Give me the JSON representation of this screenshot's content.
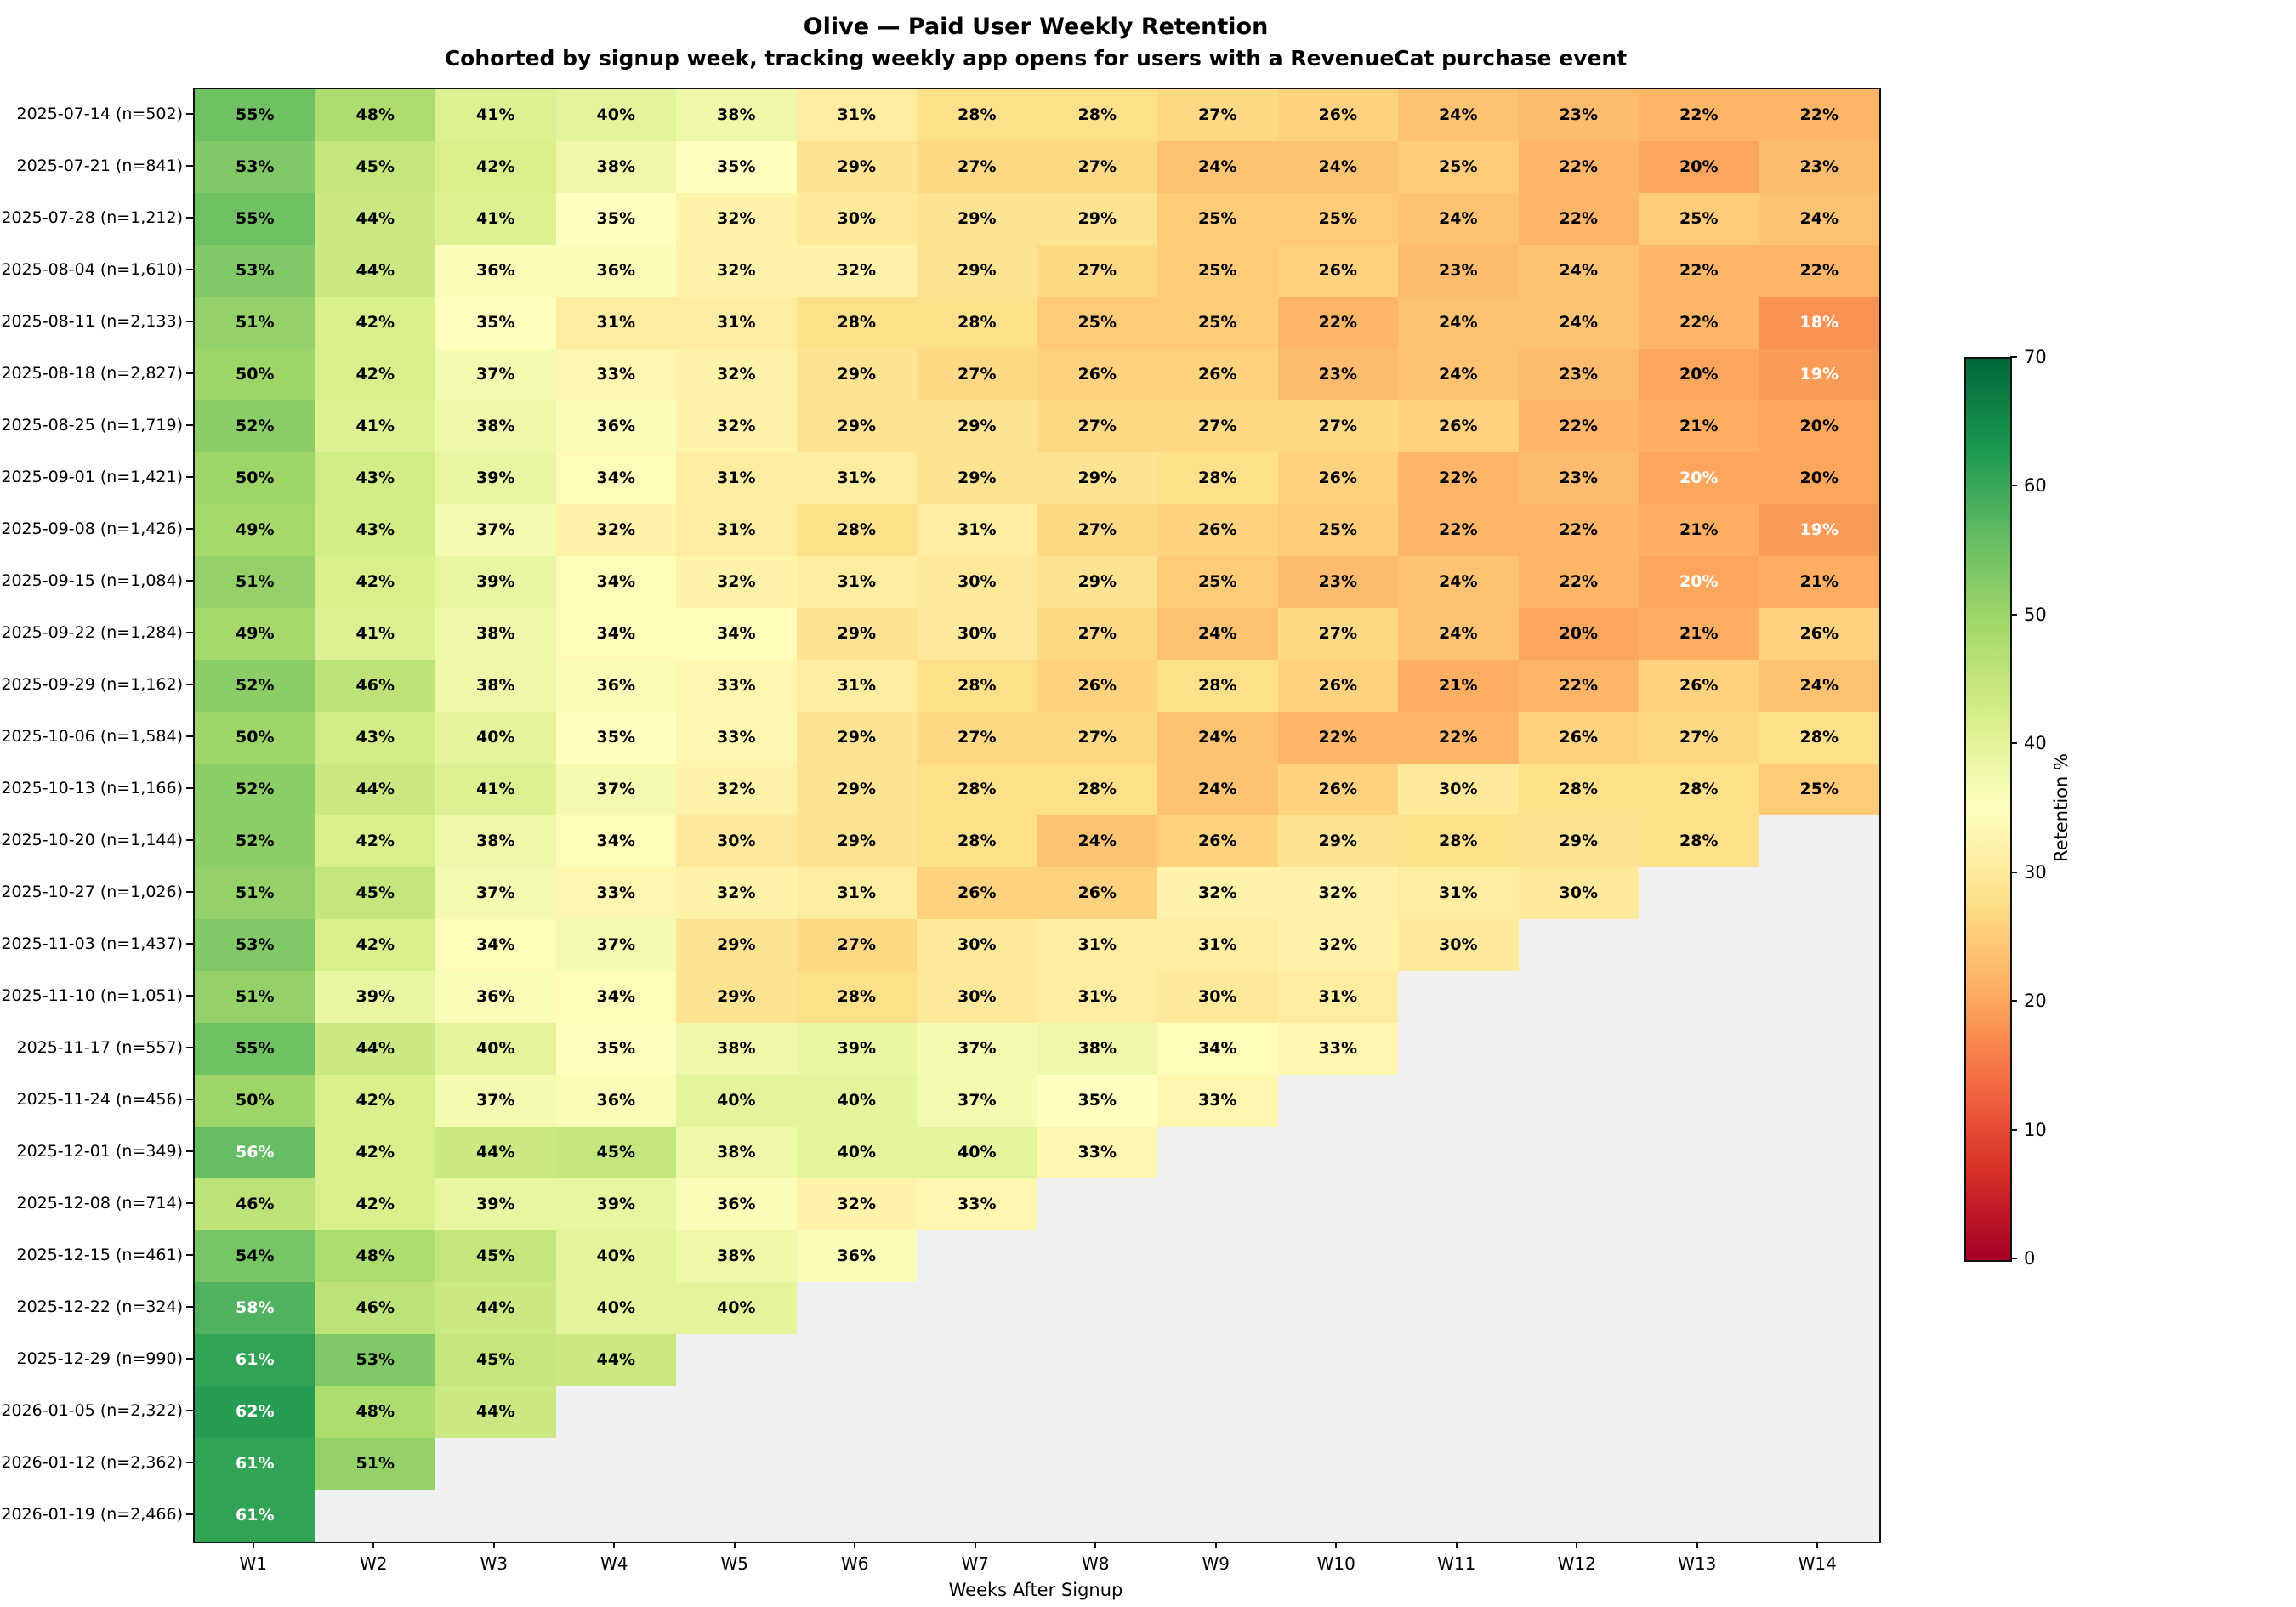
{
  "header": {
    "title": "Olive — Paid User Weekly Retention",
    "subtitle": "Cohorted by signup week, tracking weekly app opens for users with a RevenueCat purchase event"
  },
  "chart_data": {
    "type": "heatmap",
    "title": "Olive — Paid User Weekly Retention",
    "subtitle": "Cohorted by signup week, tracking weekly app opens for users with a RevenueCat purchase event",
    "xlabel": "Weeks After Signup",
    "x_ticks": [
      "W1",
      "W2",
      "W3",
      "W4",
      "W5",
      "W6",
      "W7",
      "W8",
      "W9",
      "W10",
      "W11",
      "W12",
      "W13",
      "W14"
    ],
    "value_suffix": "%",
    "cohorts": [
      {
        "label": "2025-07-14 (n=502)",
        "values": [
          55,
          48,
          41,
          40,
          38,
          31,
          28,
          28,
          27,
          26,
          24,
          23,
          22,
          22
        ]
      },
      {
        "label": "2025-07-21 (n=841)",
        "values": [
          53,
          45,
          42,
          38,
          35,
          29,
          27,
          27,
          24,
          24,
          25,
          22,
          20,
          23
        ]
      },
      {
        "label": "2025-07-28 (n=1,212)",
        "values": [
          55,
          44,
          41,
          35,
          32,
          30,
          29,
          29,
          25,
          25,
          24,
          22,
          25,
          24
        ]
      },
      {
        "label": "2025-08-04 (n=1,610)",
        "values": [
          53,
          44,
          36,
          36,
          32,
          32,
          29,
          27,
          25,
          26,
          23,
          24,
          22,
          22
        ]
      },
      {
        "label": "2025-08-11 (n=2,133)",
        "values": [
          51,
          42,
          35,
          31,
          31,
          28,
          28,
          25,
          25,
          22,
          24,
          24,
          22,
          18
        ]
      },
      {
        "label": "2025-08-18 (n=2,827)",
        "values": [
          50,
          42,
          37,
          33,
          32,
          29,
          27,
          26,
          26,
          23,
          24,
          23,
          20,
          19
        ]
      },
      {
        "label": "2025-08-25 (n=1,719)",
        "values": [
          52,
          41,
          38,
          36,
          32,
          29,
          29,
          27,
          27,
          27,
          26,
          22,
          21,
          20
        ]
      },
      {
        "label": "2025-09-01 (n=1,421)",
        "values": [
          50,
          43,
          39,
          34,
          31,
          31,
          29,
          29,
          28,
          26,
          22,
          23,
          20,
          20
        ]
      },
      {
        "label": "2025-09-08 (n=1,426)",
        "values": [
          49,
          43,
          37,
          32,
          31,
          28,
          31,
          27,
          26,
          25,
          22,
          22,
          21,
          19
        ]
      },
      {
        "label": "2025-09-15 (n=1,084)",
        "values": [
          51,
          42,
          39,
          34,
          32,
          31,
          30,
          29,
          25,
          23,
          24,
          22,
          20,
          21
        ]
      },
      {
        "label": "2025-09-22 (n=1,284)",
        "values": [
          49,
          41,
          38,
          34,
          34,
          29,
          30,
          27,
          24,
          27,
          24,
          20,
          21,
          26
        ]
      },
      {
        "label": "2025-09-29 (n=1,162)",
        "values": [
          52,
          46,
          38,
          36,
          33,
          31,
          28,
          26,
          28,
          26,
          21,
          22,
          26,
          24
        ]
      },
      {
        "label": "2025-10-06 (n=1,584)",
        "values": [
          50,
          43,
          40,
          35,
          33,
          29,
          27,
          27,
          24,
          22,
          22,
          26,
          27,
          28
        ]
      },
      {
        "label": "2025-10-13 (n=1,166)",
        "values": [
          52,
          44,
          41,
          37,
          32,
          29,
          28,
          28,
          24,
          26,
          30,
          28,
          28,
          25
        ]
      },
      {
        "label": "2025-10-20 (n=1,144)",
        "values": [
          52,
          42,
          38,
          34,
          30,
          29,
          28,
          24,
          26,
          29,
          28,
          29,
          28
        ]
      },
      {
        "label": "2025-10-27 (n=1,026)",
        "values": [
          51,
          45,
          37,
          33,
          32,
          31,
          26,
          26,
          32,
          32,
          31,
          30
        ]
      },
      {
        "label": "2025-11-03 (n=1,437)",
        "values": [
          53,
          42,
          34,
          37,
          29,
          27,
          30,
          31,
          31,
          32,
          30
        ]
      },
      {
        "label": "2025-11-10 (n=1,051)",
        "values": [
          51,
          39,
          36,
          34,
          29,
          28,
          30,
          31,
          30,
          31
        ]
      },
      {
        "label": "2025-11-17 (n=557)",
        "values": [
          55,
          44,
          40,
          35,
          38,
          39,
          37,
          38,
          34,
          33
        ]
      },
      {
        "label": "2025-11-24 (n=456)",
        "values": [
          50,
          42,
          37,
          36,
          40,
          40,
          37,
          35,
          33
        ]
      },
      {
        "label": "2025-12-01 (n=349)",
        "values": [
          56,
          42,
          44,
          45,
          38,
          40,
          40,
          33
        ]
      },
      {
        "label": "2025-12-08 (n=714)",
        "values": [
          46,
          42,
          39,
          39,
          36,
          32,
          33
        ]
      },
      {
        "label": "2025-12-15 (n=461)",
        "values": [
          54,
          48,
          45,
          40,
          38,
          36
        ]
      },
      {
        "label": "2025-12-22 (n=324)",
        "values": [
          58,
          46,
          44,
          40,
          40
        ]
      },
      {
        "label": "2025-12-29 (n=990)",
        "values": [
          61,
          53,
          45,
          44
        ]
      },
      {
        "label": "2026-01-05 (n=2,322)",
        "values": [
          62,
          48,
          44
        ]
      },
      {
        "label": "2026-01-12 (n=2,362)",
        "values": [
          61,
          51
        ]
      },
      {
        "label": "2026-01-19 (n=2,466)",
        "values": [
          61
        ]
      }
    ],
    "white_text_cells": [
      [
        4,
        13
      ],
      [
        5,
        13
      ],
      [
        7,
        12
      ],
      [
        8,
        13
      ],
      [
        9,
        12
      ],
      [
        20,
        0
      ],
      [
        23,
        0
      ],
      [
        24,
        0
      ],
      [
        25,
        0
      ],
      [
        26,
        0
      ],
      [
        27,
        0
      ]
    ],
    "colorbar": {
      "label": "Retention %",
      "min": 0,
      "max": 70,
      "ticks": [
        0,
        10,
        20,
        30,
        40,
        50,
        60,
        70
      ]
    },
    "colormap": {
      "name": "RdYlGn",
      "stops": [
        "#a50026",
        "#d73027",
        "#f46d43",
        "#fdae61",
        "#fee08b",
        "#ffffbf",
        "#d9ef8b",
        "#a6d96a",
        "#66bd63",
        "#1a9850",
        "#006837"
      ]
    },
    "empty_color": "#f0f0f0",
    "text_color": "#000000",
    "alt_text_color": "#ffffff",
    "legend_position": "right",
    "grid": false
  }
}
